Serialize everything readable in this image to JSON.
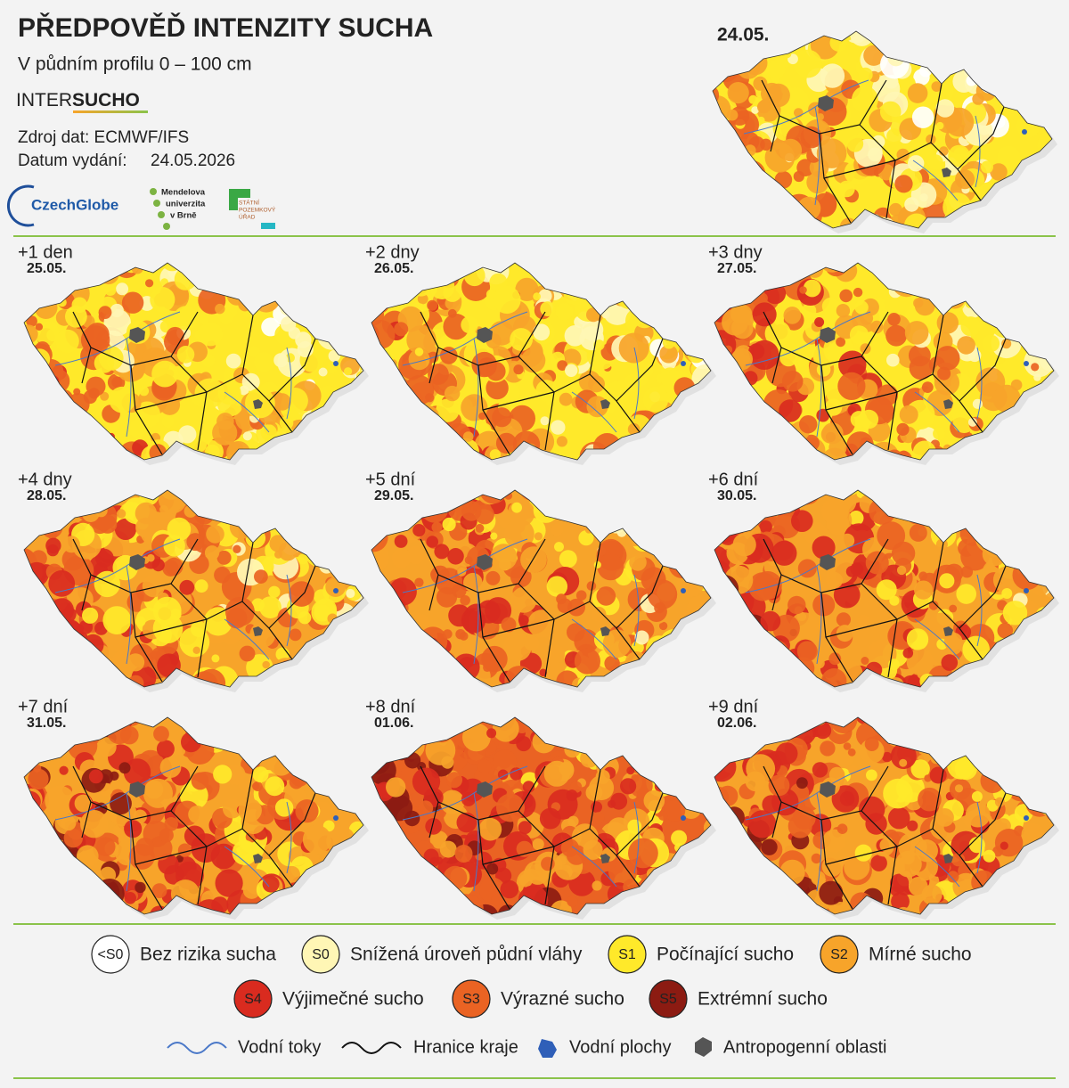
{
  "header": {
    "title": "PŘEDPOVĚĎ INTENZITY SUCHA",
    "subtitle": "V půdním profilu 0 – 100 cm",
    "brand_light": "INTER",
    "brand_bold": "SUCHO",
    "source": "Zdroj dat: ECMWF/IFS",
    "issued_label": "Datum vydání:",
    "issued_date": "24.05.2026",
    "logo_czechglobe": "CzechGlobe",
    "logo_mendel": [
      "Mendelova",
      "univerzita",
      "v Brně"
    ],
    "logo_spu": [
      "STÁTNÍ",
      "POZEMKOVÝ",
      "ÚŘAD"
    ]
  },
  "current": {
    "date": "24.05."
  },
  "forecasts": [
    {
      "offset": "+1 den",
      "date": "25.05."
    },
    {
      "offset": "+2 dny",
      "date": "26.05."
    },
    {
      "offset": "+3 dny",
      "date": "27.05."
    },
    {
      "offset": "+4 dny",
      "date": "28.05."
    },
    {
      "offset": "+5 dní",
      "date": "29.05."
    },
    {
      "offset": "+6 dní",
      "date": "30.05."
    },
    {
      "offset": "+7 dní",
      "date": "31.05."
    },
    {
      "offset": "+8 dní",
      "date": "01.06."
    },
    {
      "offset": "+9 dní",
      "date": "02.06."
    }
  ],
  "legend": {
    "classes": [
      {
        "code": "<S0",
        "label": "Bez rizika sucha",
        "color": "#ffffff"
      },
      {
        "code": "S0",
        "label": "Snížená úroveň půdní vláhy",
        "color": "#fff6b5"
      },
      {
        "code": "S1",
        "label": "Počínající sucho",
        "color": "#ffe92a"
      },
      {
        "code": "S2",
        "label": "Mírné sucho",
        "color": "#f7a42a"
      },
      {
        "code": "S4",
        "label": "Výjimečné sucho",
        "color": "#d92b1f"
      },
      {
        "code": "S3",
        "label": "Výrazné sucho",
        "color": "#ea6323"
      },
      {
        "code": "S5",
        "label": "Extrémní sucho",
        "color": "#8c1b12"
      }
    ],
    "features": [
      {
        "label": "Vodní toky",
        "color": "#4a78c8"
      },
      {
        "label": "Hranice kraje",
        "color": "#111111"
      },
      {
        "label": "Vodní plochy",
        "color": "#2f5fb8"
      },
      {
        "label": "Antropogenní oblasti",
        "color": "#555555"
      }
    ]
  }
}
